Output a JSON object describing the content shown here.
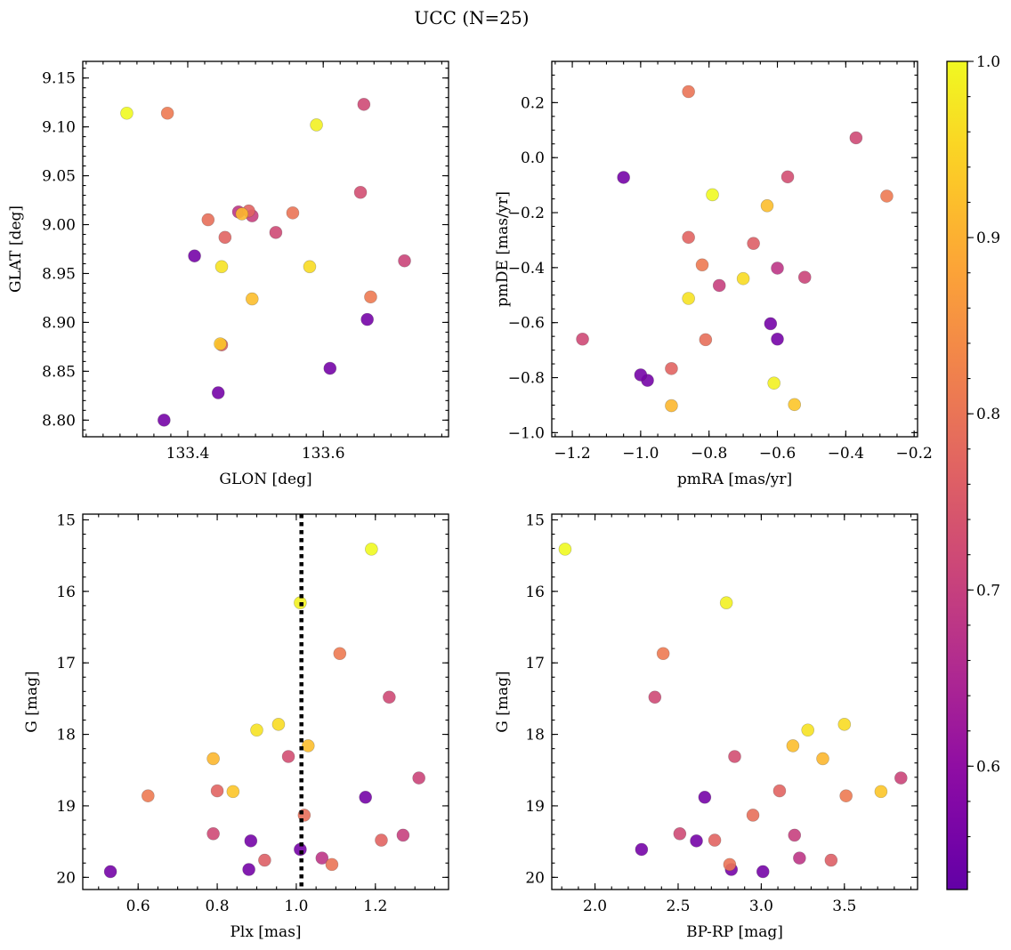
{
  "chart_data": {
    "type": "scatter",
    "title": "UCC (N=25)",
    "colorbar": {
      "range": [
        0.53,
        1.0
      ],
      "ticks": [
        0.6,
        0.7,
        0.8,
        0.9,
        1.0
      ],
      "tick_labels": [
        "0.6",
        "0.7",
        "0.8",
        "0.9",
        "1.0"
      ],
      "colormap": "plasma"
    },
    "members": [
      {
        "glon": 133.31,
        "glat": 9.114,
        "pmra": -0.79,
        "pmde": -0.135,
        "plx": 1.19,
        "g": 15.41,
        "bprp": 1.82,
        "prob": 1.0
      },
      {
        "glon": 133.59,
        "glat": 9.102,
        "pmra": -0.61,
        "pmde": -0.82,
        "plx": 1.01,
        "g": 16.16,
        "bprp": 2.79,
        "prob": 0.99
      },
      {
        "glon": 133.37,
        "glat": 9.114,
        "pmra": -0.28,
        "pmde": -0.14,
        "plx": 1.11,
        "g": 16.87,
        "bprp": 2.41,
        "prob": 0.81
      },
      {
        "glon": 133.66,
        "glat": 9.123,
        "pmra": -0.37,
        "pmde": 0.072,
        "plx": 1.235,
        "g": 17.48,
        "bprp": 2.36,
        "prob": 0.72
      },
      {
        "glon": 133.58,
        "glat": 8.957,
        "pmra": -0.7,
        "pmde": -0.44,
        "plx": 0.955,
        "g": 17.86,
        "bprp": 3.5,
        "prob": 0.96
      },
      {
        "glon": 133.45,
        "glat": 8.957,
        "pmra": -0.86,
        "pmde": -0.512,
        "plx": 0.9,
        "g": 17.94,
        "bprp": 3.28,
        "prob": 0.97
      },
      {
        "glon": 133.495,
        "glat": 8.924,
        "pmra": -0.63,
        "pmde": -0.175,
        "plx": 1.03,
        "g": 18.16,
        "bprp": 3.19,
        "prob": 0.92
      },
      {
        "glon": 133.48,
        "glat": 9.011,
        "pmra": -0.91,
        "pmde": -0.902,
        "plx": 0.79,
        "g": 18.34,
        "bprp": 3.37,
        "prob": 0.91
      },
      {
        "glon": 133.655,
        "glat": 9.033,
        "pmra": -0.57,
        "pmde": -0.07,
        "plx": 0.98,
        "g": 18.31,
        "bprp": 2.84,
        "prob": 0.73
      },
      {
        "glon": 133.72,
        "glat": 8.963,
        "pmra": -0.52,
        "pmde": -0.435,
        "plx": 1.31,
        "g": 18.61,
        "bprp": 3.84,
        "prob": 0.71
      },
      {
        "glon": 133.49,
        "glat": 9.014,
        "pmra": -0.86,
        "pmde": -0.29,
        "plx": 0.8,
        "g": 18.79,
        "bprp": 3.11,
        "prob": 0.77
      },
      {
        "glon": 133.448,
        "glat": 8.878,
        "pmra": -0.55,
        "pmde": -0.898,
        "plx": 0.84,
        "g": 18.8,
        "bprp": 3.72,
        "prob": 0.93
      },
      {
        "glon": 133.67,
        "glat": 8.926,
        "pmra": -0.82,
        "pmde": -0.39,
        "plx": 0.625,
        "g": 18.86,
        "bprp": 3.51,
        "prob": 0.81
      },
      {
        "glon": 133.665,
        "glat": 8.903,
        "pmra": -0.62,
        "pmde": -0.604,
        "plx": 1.175,
        "g": 18.88,
        "bprp": 2.66,
        "prob": 0.56
      },
      {
        "glon": 133.43,
        "glat": 9.005,
        "pmra": -0.81,
        "pmde": -0.662,
        "plx": 1.02,
        "g": 19.13,
        "bprp": 2.95,
        "prob": 0.79
      },
      {
        "glon": 133.53,
        "glat": 8.992,
        "pmra": -1.17,
        "pmde": -0.66,
        "plx": 0.79,
        "g": 19.39,
        "bprp": 2.51,
        "prob": 0.72
      },
      {
        "glon": 133.455,
        "glat": 8.987,
        "pmra": -0.91,
        "pmde": -0.767,
        "plx": 1.215,
        "g": 19.48,
        "bprp": 2.72,
        "prob": 0.77
      },
      {
        "glon": 133.495,
        "glat": 9.009,
        "pmra": -0.77,
        "pmde": -0.465,
        "plx": 1.27,
        "g": 19.41,
        "bprp": 3.2,
        "prob": 0.7
      },
      {
        "glon": 133.41,
        "glat": 8.968,
        "pmra": -1.05,
        "pmde": -0.072,
        "plx": 0.885,
        "g": 19.49,
        "bprp": 2.61,
        "prob": 0.56
      },
      {
        "glon": 133.445,
        "glat": 8.828,
        "pmra": -0.98,
        "pmde": -0.81,
        "plx": 1.01,
        "g": 19.61,
        "bprp": 2.28,
        "prob": 0.56
      },
      {
        "glon": 133.475,
        "glat": 9.013,
        "pmra": -0.6,
        "pmde": -0.402,
        "plx": 1.065,
        "g": 19.73,
        "bprp": 3.23,
        "prob": 0.68
      },
      {
        "glon": 133.45,
        "glat": 8.877,
        "pmra": -0.67,
        "pmde": -0.312,
        "plx": 0.92,
        "g": 19.76,
        "bprp": 3.42,
        "prob": 0.76
      },
      {
        "glon": 133.555,
        "glat": 9.012,
        "pmra": -0.86,
        "pmde": 0.24,
        "plx": 1.09,
        "g": 19.82,
        "bprp": 2.81,
        "prob": 0.8
      },
      {
        "glon": 133.61,
        "glat": 8.853,
        "pmra": -0.6,
        "pmde": -0.66,
        "plx": 0.88,
        "g": 19.89,
        "bprp": 2.82,
        "prob": 0.56
      },
      {
        "glon": 133.365,
        "glat": 8.8,
        "pmra": -1.0,
        "pmde": -0.79,
        "plx": 0.53,
        "g": 19.92,
        "bprp": 3.01,
        "prob": 0.56
      }
    ],
    "panels": [
      {
        "id": "sky",
        "x": "glon",
        "y": "glat",
        "xlabel": "GLON [deg]",
        "ylabel": "GLAT [deg]",
        "xlim": [
          133.245,
          133.785
        ],
        "ylim": [
          8.783,
          9.167
        ],
        "x_invert": false,
        "y_invert": false,
        "xticks": [
          133.4,
          133.6
        ],
        "xtick_labels": [
          "133.4",
          "133.6"
        ],
        "yticks": [
          8.8,
          8.85,
          8.9,
          8.95,
          9.0,
          9.05,
          9.1,
          9.15
        ],
        "ytick_labels": [
          "8.80",
          "8.85",
          "8.90",
          "8.95",
          "9.00",
          "9.05",
          "9.10",
          "9.15"
        ],
        "xminor": 0.025,
        "yminor": 0.01
      },
      {
        "id": "pm",
        "x": "pmra",
        "y": "pmde",
        "xlabel": "pmRA [mas/yr]",
        "ylabel": "pmDE [mas/yr]",
        "xlim": [
          -1.26,
          -0.19
        ],
        "ylim": [
          -1.015,
          0.35
        ],
        "x_invert": false,
        "y_invert": false,
        "xticks": [
          -1.2,
          -1.0,
          -0.8,
          -0.6,
          -0.4,
          -0.2
        ],
        "xtick_labels": [
          "−1.2",
          "−1.0",
          "−0.8",
          "−0.6",
          "−0.4",
          "−0.2"
        ],
        "yticks": [
          -1.0,
          -0.8,
          -0.6,
          -0.4,
          -0.2,
          0.0,
          0.2
        ],
        "ytick_labels": [
          "−1.0",
          "−0.8",
          "−0.6",
          "−0.4",
          "−0.2",
          "0.0",
          "0.2"
        ],
        "xminor": 0.05,
        "yminor": 0.05
      },
      {
        "id": "plx",
        "x": "plx",
        "y": "g",
        "xlabel": "Plx [mas]",
        "ylabel": "G [mag]",
        "xlim": [
          0.46,
          1.385
        ],
        "ylim": [
          14.92,
          20.17
        ],
        "x_invert": false,
        "y_invert": true,
        "xticks": [
          0.6,
          0.8,
          1.0,
          1.2
        ],
        "xtick_labels": [
          "0.6",
          "0.8",
          "1.0",
          "1.2"
        ],
        "yticks": [
          15,
          16,
          17,
          18,
          19,
          20
        ],
        "ytick_labels": [
          "15",
          "16",
          "17",
          "18",
          "19",
          "20"
        ],
        "xminor": 0.05,
        "yminor": 0.2,
        "vline": 1.013
      },
      {
        "id": "cmd",
        "x": "bprp",
        "y": "g",
        "xlabel": "BP-RP [mag]",
        "ylabel": "G [mag]",
        "xlim": [
          1.74,
          3.94
        ],
        "ylim": [
          14.92,
          20.17
        ],
        "x_invert": false,
        "y_invert": true,
        "xticks": [
          2.0,
          2.5,
          3.0,
          3.5
        ],
        "xtick_labels": [
          "2.0",
          "2.5",
          "3.0",
          "3.5"
        ],
        "yticks": [
          15,
          16,
          17,
          18,
          19,
          20
        ],
        "ytick_labels": [
          "15",
          "16",
          "17",
          "18",
          "19",
          "20"
        ],
        "xminor": 0.1,
        "yminor": 0.2
      }
    ]
  }
}
